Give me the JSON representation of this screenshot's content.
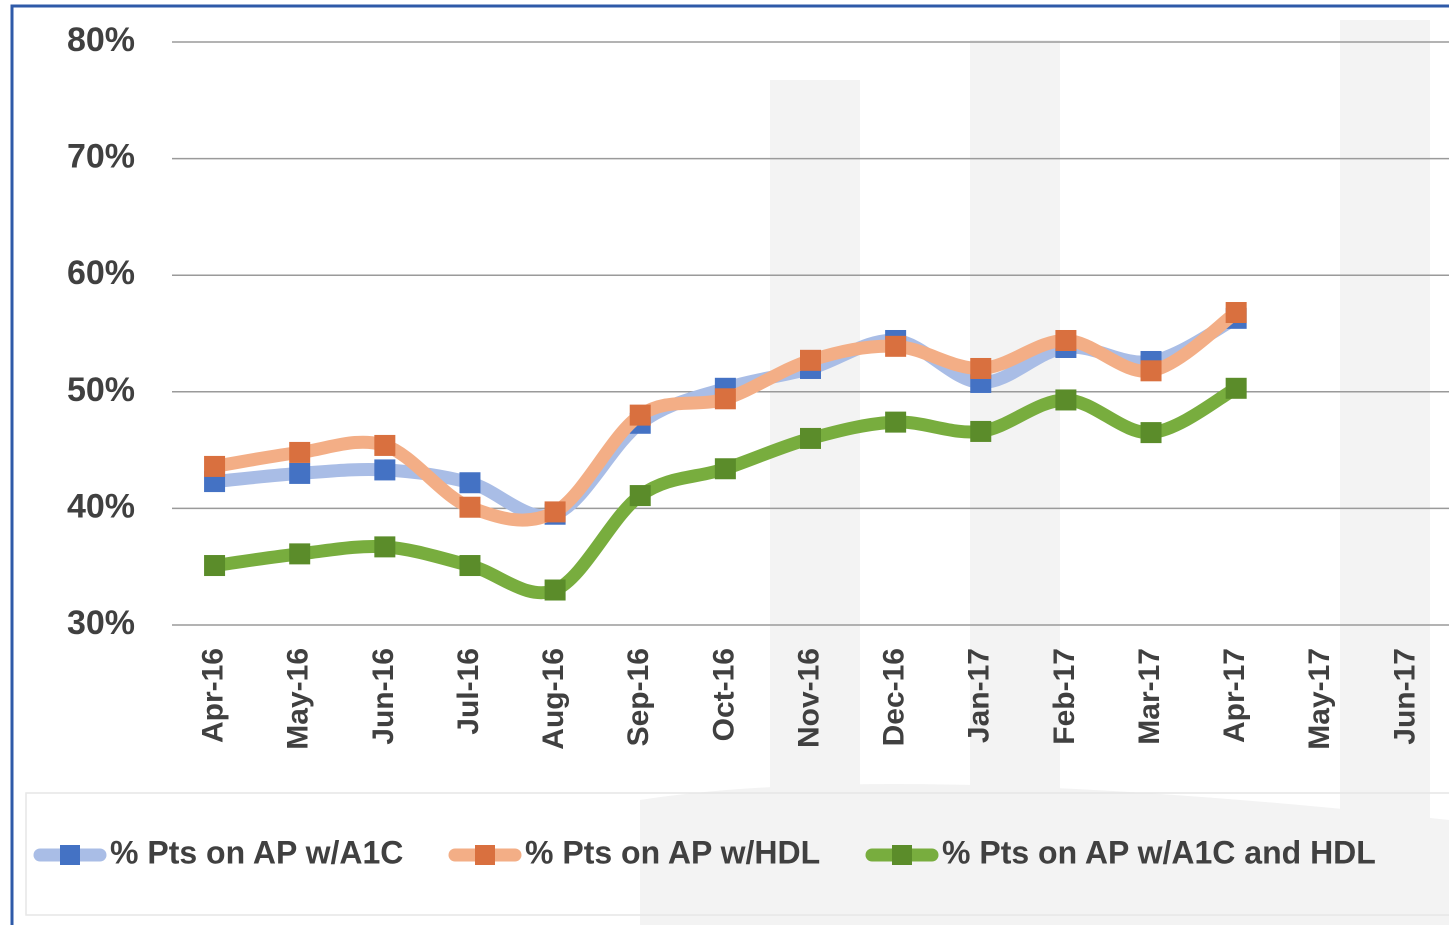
{
  "chart_data": {
    "type": "line",
    "categories": [
      "Apr-16",
      "May-16",
      "Jun-16",
      "Jul-16",
      "Aug-16",
      "Sep-16",
      "Oct-16",
      "Nov-16",
      "Dec-16",
      "Jan-17",
      "Feb-17",
      "Mar-17",
      "Apr-17",
      "May-17",
      "Jun-17"
    ],
    "series": [
      {
        "name": "% Pts on AP w/A1C",
        "color": "#a9bde6",
        "marker_color": "#4472c4",
        "values": [
          42.3,
          43.0,
          43.3,
          42.2,
          39.5,
          47.3,
          50.3,
          52.0,
          54.4,
          50.8,
          53.8,
          52.6,
          56.3,
          null,
          null
        ]
      },
      {
        "name": "% Pts on AP w/HDL",
        "color": "#f3ae86",
        "marker_color": "#d9703f",
        "values": [
          43.6,
          44.8,
          45.4,
          40.1,
          39.7,
          48.0,
          49.4,
          52.7,
          53.9,
          52.0,
          54.4,
          51.8,
          56.8,
          null,
          null
        ]
      },
      {
        "name": "% Pts on AP w/A1C and HDL",
        "color": "#78ad3e",
        "marker_color": "#5b8c2a",
        "values": [
          35.1,
          36.1,
          36.7,
          35.1,
          33.0,
          41.1,
          43.4,
          46.0,
          47.4,
          46.6,
          49.3,
          46.5,
          50.3,
          null,
          null
        ]
      }
    ],
    "ylim": [
      30,
      80
    ],
    "yticks": [
      {
        "value": 30,
        "label": "30%"
      },
      {
        "value": 40,
        "label": "40%"
      },
      {
        "value": 50,
        "label": "50%"
      },
      {
        "value": 60,
        "label": "60%"
      },
      {
        "value": 70,
        "label": "70%"
      },
      {
        "value": 80,
        "label": "80%"
      }
    ],
    "grid": true,
    "legend": "bottom"
  }
}
